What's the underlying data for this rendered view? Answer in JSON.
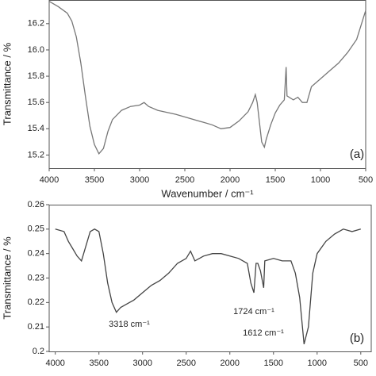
{
  "chart_data": [
    {
      "type": "line",
      "x_label": "Wavenumber / cm⁻¹",
      "y_label": "Transmittance / %",
      "annotations": [
        "(a)"
      ],
      "xlim": [
        4000,
        500
      ],
      "xticks": [
        4000,
        3500,
        3000,
        2500,
        2000,
        1500,
        1000,
        500
      ],
      "ylim": [
        15.1,
        16.38
      ],
      "yticks": [
        {
          "value": 15.2,
          "label": "15.2"
        },
        {
          "value": 15.4,
          "label": "15.4"
        },
        {
          "value": 15.6,
          "label": "15.6"
        },
        {
          "value": 15.8,
          "label": "15.8"
        },
        {
          "value": 16,
          "label": "16.0"
        },
        {
          "value": 16.2,
          "label": "16.2"
        }
      ],
      "series": [
        {
          "color": "#777777",
          "x": [
            4000,
            3900,
            3800,
            3750,
            3700,
            3650,
            3600,
            3550,
            3500,
            3450,
            3400,
            3350,
            3300,
            3200,
            3100,
            3000,
            2950,
            2900,
            2800,
            2600,
            2400,
            2200,
            2100,
            2000,
            1900,
            1800,
            1750,
            1720,
            1700,
            1650,
            1620,
            1600,
            1550,
            1500,
            1450,
            1400,
            1380,
            1370,
            1300,
            1250,
            1200,
            1150,
            1100,
            1000,
            900,
            800,
            700,
            600,
            500
          ],
          "values": [
            16.37,
            16.33,
            16.28,
            16.22,
            16.1,
            15.9,
            15.65,
            15.42,
            15.28,
            15.21,
            15.25,
            15.38,
            15.47,
            15.54,
            15.57,
            15.58,
            15.6,
            15.57,
            15.54,
            15.51,
            15.47,
            15.43,
            15.4,
            15.41,
            15.46,
            15.53,
            15.6,
            15.66,
            15.6,
            15.3,
            15.26,
            15.32,
            15.43,
            15.52,
            15.58,
            15.62,
            15.87,
            15.65,
            15.62,
            15.64,
            15.6,
            15.6,
            15.72,
            15.78,
            15.84,
            15.9,
            15.98,
            16.08,
            16.3
          ]
        }
      ]
    },
    {
      "type": "line",
      "y_label": "Transmittance / %",
      "annotations": [
        "3318 cm⁻¹",
        "1724 cm⁻¹",
        "1612 cm⁻¹",
        "(b)"
      ],
      "xlim": [
        4070,
        380
      ],
      "xticks": [
        4000,
        3500,
        3000,
        2500,
        2000,
        1500,
        1000,
        500
      ],
      "ylim": [
        0.2,
        0.26
      ],
      "yticks": [
        0.2,
        0.21,
        0.22,
        0.23,
        0.24,
        0.25,
        0.26
      ],
      "series": [
        {
          "color": "#444444",
          "x": [
            4000,
            3900,
            3850,
            3800,
            3750,
            3700,
            3650,
            3600,
            3550,
            3500,
            3450,
            3400,
            3350,
            3300,
            3250,
            3200,
            3100,
            3000,
            2900,
            2800,
            2700,
            2600,
            2500,
            2450,
            2400,
            2300,
            2200,
            2100,
            2000,
            1900,
            1800,
            1760,
            1724,
            1700,
            1680,
            1650,
            1612,
            1600,
            1500,
            1400,
            1300,
            1250,
            1200,
            1150,
            1100,
            1050,
            1000,
            900,
            800,
            700,
            600,
            500
          ],
          "values": [
            0.25,
            0.249,
            0.245,
            0.242,
            0.239,
            0.237,
            0.243,
            0.249,
            0.25,
            0.249,
            0.24,
            0.228,
            0.22,
            0.216,
            0.218,
            0.219,
            0.221,
            0.224,
            0.227,
            0.229,
            0.232,
            0.236,
            0.238,
            0.241,
            0.237,
            0.239,
            0.24,
            0.24,
            0.239,
            0.238,
            0.236,
            0.228,
            0.224,
            0.236,
            0.236,
            0.233,
            0.226,
            0.237,
            0.238,
            0.237,
            0.237,
            0.232,
            0.222,
            0.203,
            0.21,
            0.232,
            0.24,
            0.245,
            0.248,
            0.25,
            0.249,
            0.25
          ]
        }
      ]
    }
  ]
}
